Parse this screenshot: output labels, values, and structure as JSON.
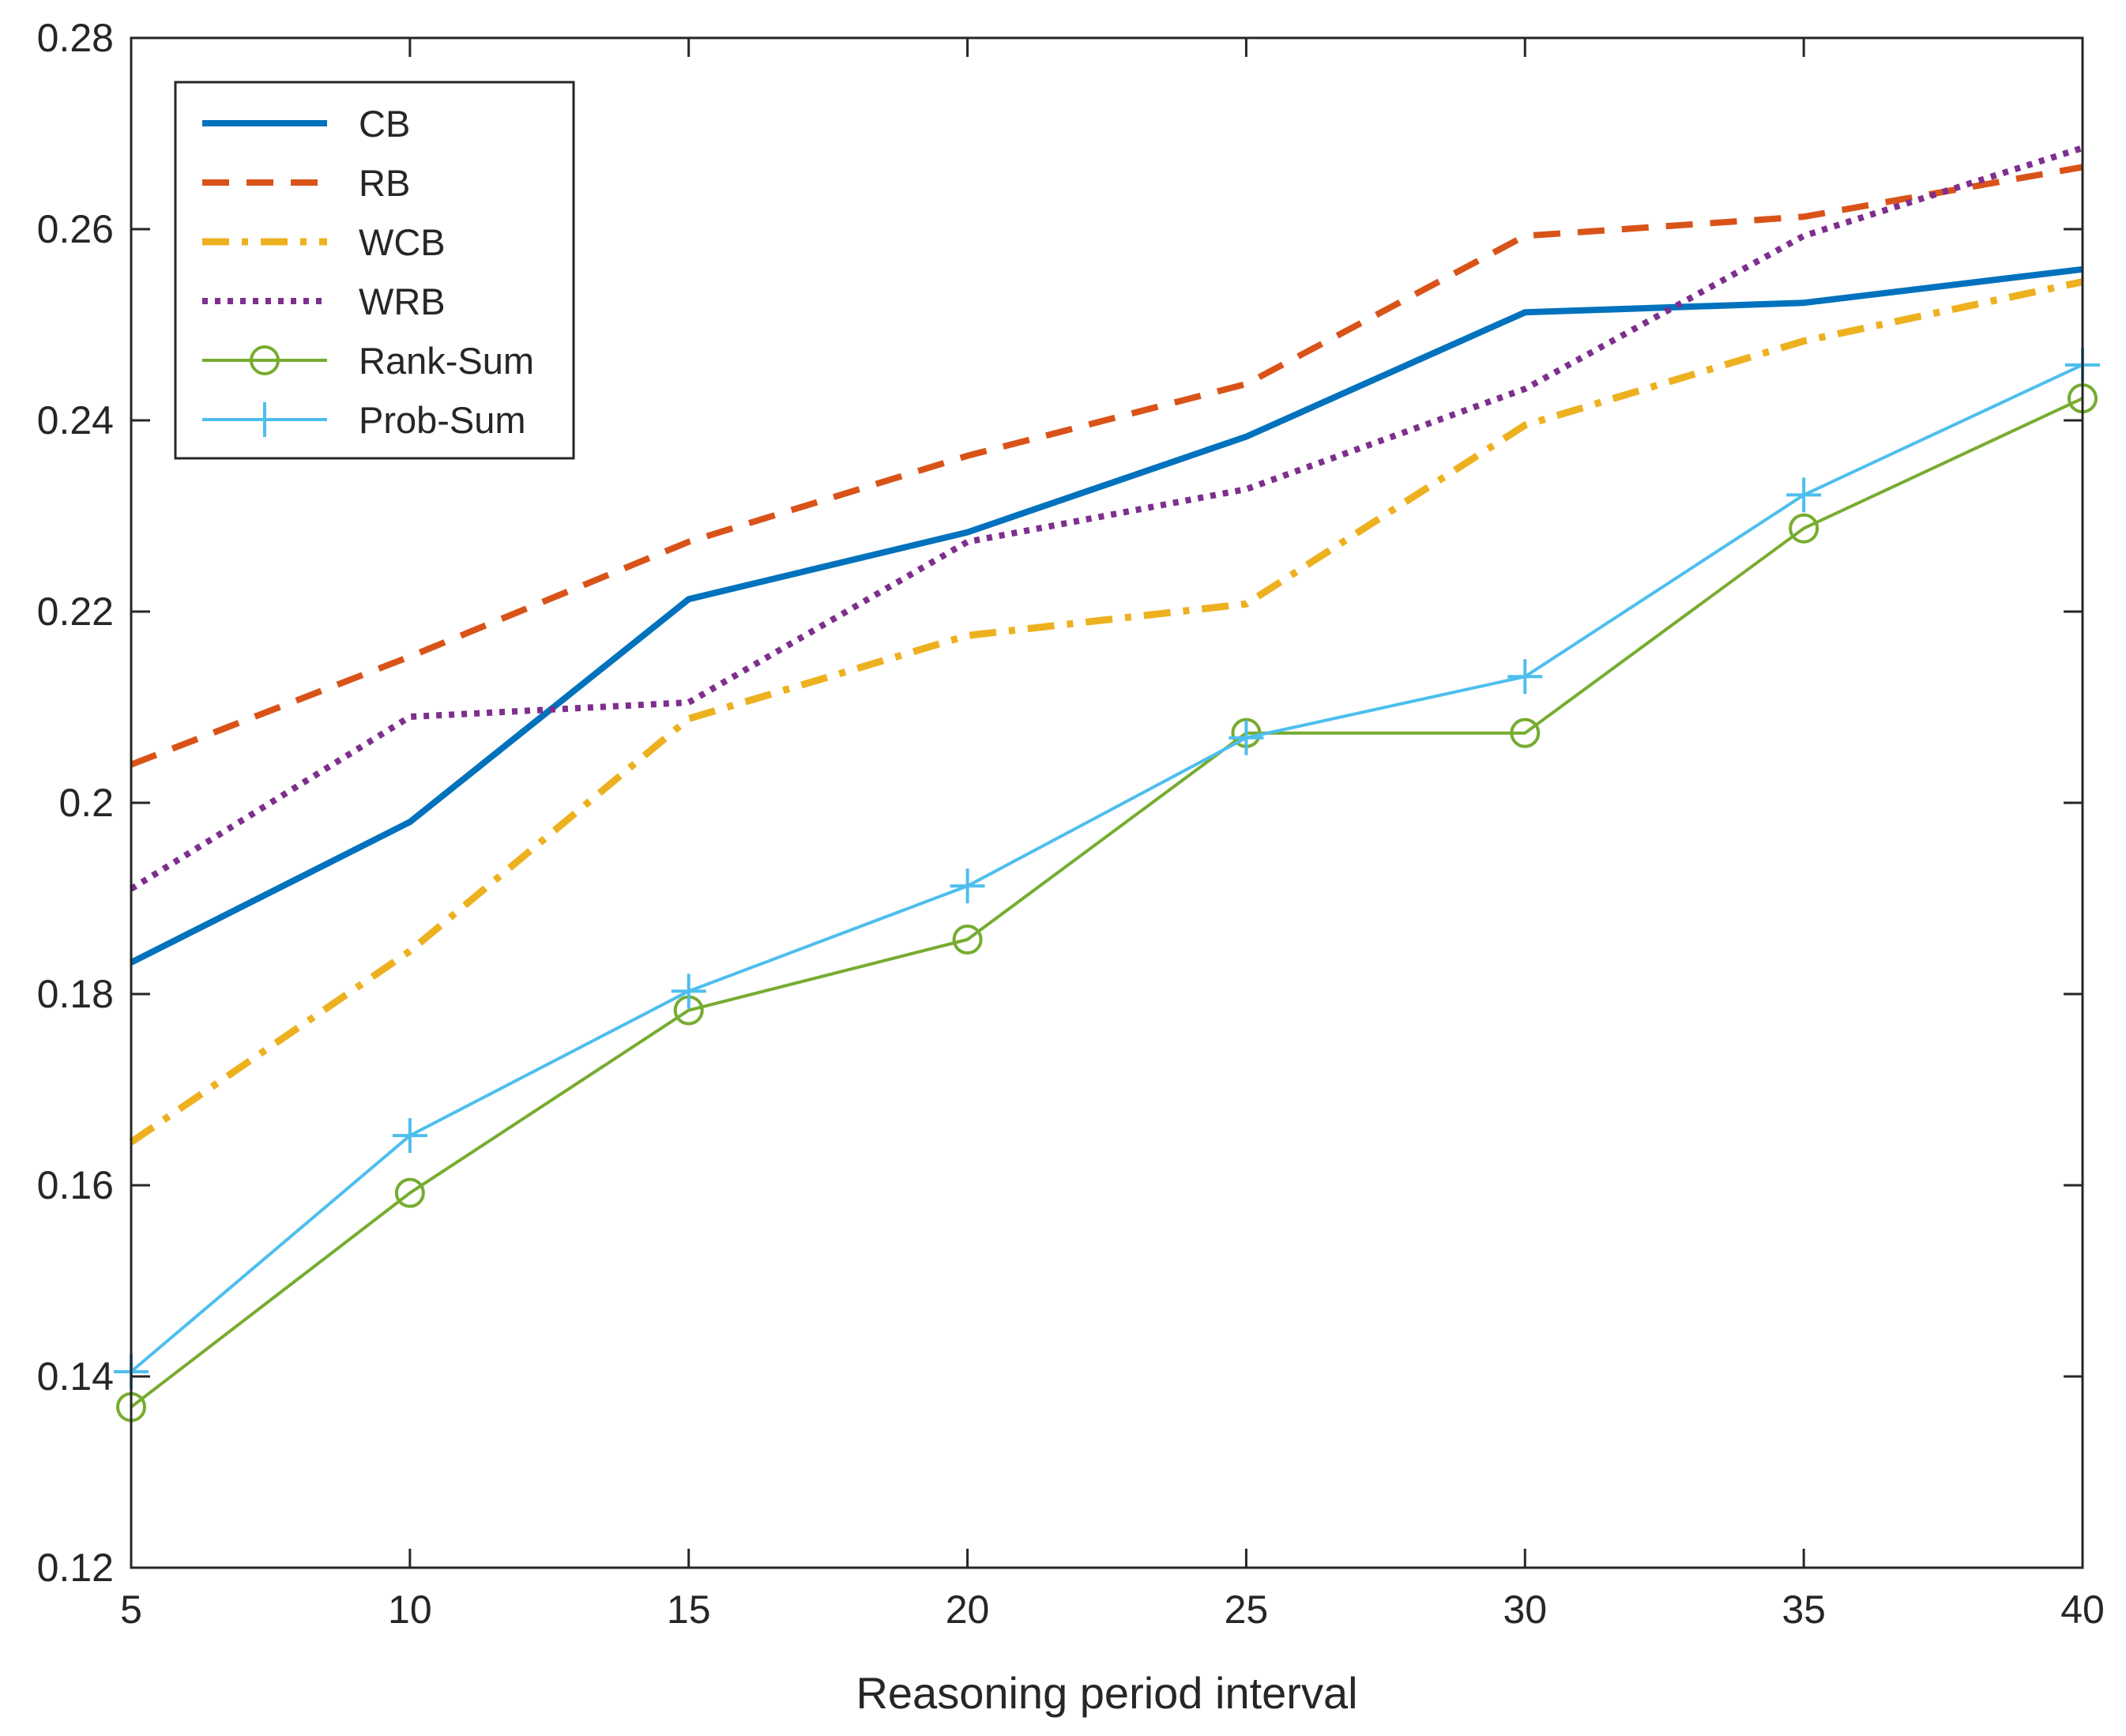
{
  "chart_data": {
    "type": "line",
    "title": "",
    "xlabel": "Reasoning period interval",
    "ylabel": "",
    "x": [
      5,
      10,
      15,
      20,
      25,
      30,
      35,
      40
    ],
    "xticks": [
      5,
      10,
      15,
      20,
      25,
      30,
      35,
      40
    ],
    "xtick_labels": [
      "5",
      "10",
      "15",
      "20",
      "25",
      "30",
      "35",
      "40"
    ],
    "xlim": [
      5,
      40
    ],
    "yticks": [
      0.12,
      0.14,
      0.16,
      0.18,
      0.2,
      0.22,
      0.24,
      0.26,
      0.28
    ],
    "ytick_labels": [
      "0.12",
      "0.14",
      "0.16",
      "0.18",
      "0.2",
      "0.22",
      "0.24",
      "0.26",
      "0.28"
    ],
    "ylim": [
      0.12,
      0.28
    ],
    "grid": false,
    "legend_position": "top-left",
    "series": [
      {
        "name": "CB",
        "color": "#0072BD",
        "style": "solid",
        "marker": "none",
        "values": [
          0.1833,
          0.198,
          0.2213,
          0.2283,
          0.2383,
          0.2513,
          0.2523,
          0.2558
        ]
      },
      {
        "name": "RB",
        "color": "#D95319",
        "style": "dashed",
        "marker": "none",
        "values": [
          0.204,
          0.2153,
          0.2273,
          0.2363,
          0.2438,
          0.2593,
          0.2613,
          0.2665
        ]
      },
      {
        "name": "WCB",
        "color": "#EDB120",
        "style": "dashdot",
        "marker": "none",
        "values": [
          0.1645,
          0.1845,
          0.2088,
          0.2175,
          0.2208,
          0.2395,
          0.2483,
          0.2545
        ]
      },
      {
        "name": "WRB",
        "color": "#7E2F8E",
        "style": "dotted",
        "marker": "none",
        "values": [
          0.191,
          0.209,
          0.2105,
          0.2273,
          0.2328,
          0.2433,
          0.2593,
          0.2685
        ]
      },
      {
        "name": "Rank-Sum",
        "color": "#77AC30",
        "style": "solid",
        "marker": "circle",
        "values": [
          0.1368,
          0.1592,
          0.1783,
          0.1857,
          0.2073,
          0.2073,
          0.2287,
          0.2423
        ]
      },
      {
        "name": "Prob-Sum",
        "color": "#4DBEEE",
        "style": "solid",
        "marker": "plus",
        "values": [
          0.1405,
          0.1652,
          0.1803,
          0.1913,
          0.2068,
          0.2132,
          0.2322,
          0.2458
        ]
      }
    ]
  }
}
